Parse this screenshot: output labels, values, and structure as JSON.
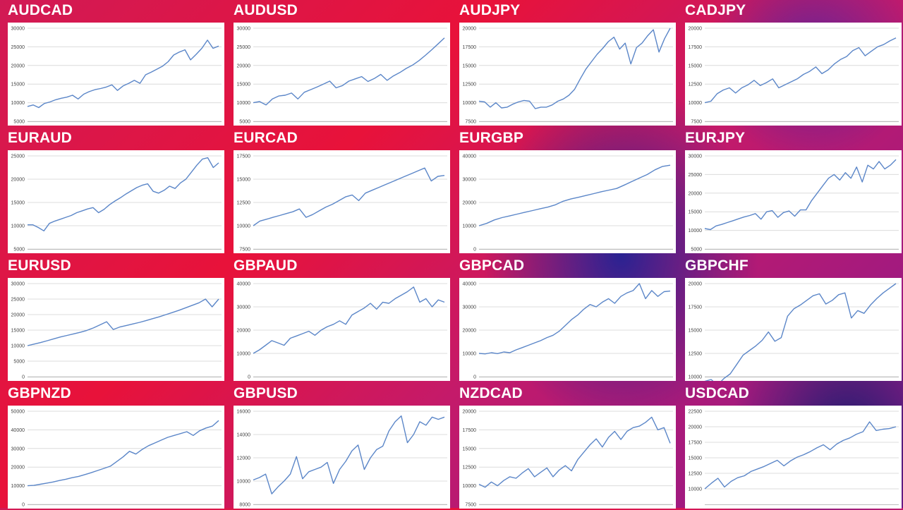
{
  "chart_data": [
    {
      "type": "line",
      "title": "AUDCAD",
      "ylim": [
        5000,
        30000
      ],
      "yticks": [
        5000,
        10000,
        15000,
        20000,
        25000,
        30000
      ],
      "x": [
        0,
        1,
        2,
        3,
        4,
        5,
        6,
        7,
        8,
        9,
        10,
        11,
        12,
        13,
        14,
        15,
        16,
        17,
        18,
        19,
        20,
        21,
        22,
        23,
        24,
        25,
        26,
        27,
        28,
        29,
        30,
        31,
        32,
        33,
        34
      ],
      "values": [
        9000,
        9400,
        8700,
        9800,
        10200,
        10800,
        11200,
        11500,
        12000,
        11000,
        12300,
        13000,
        13500,
        13800,
        14200,
        14800,
        13300,
        14500,
        15200,
        16000,
        15200,
        17500,
        18200,
        19000,
        19800,
        21000,
        22800,
        23600,
        24200,
        21500,
        23000,
        24600,
        26800,
        24600,
        25200
      ]
    },
    {
      "type": "line",
      "title": "AUDUSD",
      "ylim": [
        5000,
        30000
      ],
      "yticks": [
        5000,
        10000,
        15000,
        20000,
        25000,
        30000
      ],
      "x": [
        0,
        1,
        2,
        3,
        4,
        5,
        6,
        7,
        8,
        9,
        10,
        11,
        12,
        13,
        14,
        15,
        16,
        17,
        18,
        19,
        20,
        21,
        22,
        23,
        24,
        25,
        26,
        27,
        28,
        29,
        30
      ],
      "values": [
        10000,
        10300,
        9400,
        11000,
        11800,
        12000,
        12600,
        11000,
        12800,
        13500,
        14200,
        15000,
        15800,
        14000,
        14600,
        15800,
        16400,
        17000,
        15700,
        16500,
        17600,
        16000,
        17200,
        18100,
        19200,
        20100,
        21300,
        22700,
        24200,
        25800,
        27400
      ]
    },
    {
      "type": "line",
      "title": "AUDJPY",
      "ylim": [
        7500,
        20000
      ],
      "yticks": [
        7500,
        10000,
        12500,
        15000,
        17500,
        20000
      ],
      "x": [
        0,
        1,
        2,
        3,
        4,
        5,
        6,
        7,
        8,
        9,
        10,
        11,
        12,
        13,
        14,
        15,
        16,
        17,
        18,
        19,
        20,
        21,
        22,
        23,
        24,
        25,
        26,
        27,
        28,
        29,
        30,
        31,
        32,
        33,
        34
      ],
      "values": [
        10200,
        10100,
        9400,
        10000,
        9300,
        9400,
        9800,
        10100,
        10300,
        10200,
        9200,
        9400,
        9400,
        9700,
        10200,
        10500,
        11000,
        11800,
        13200,
        14500,
        15500,
        16500,
        17300,
        18200,
        18800,
        17200,
        18000,
        15200,
        17400,
        18000,
        19000,
        19800,
        16800,
        18600,
        20000
      ]
    },
    {
      "type": "line",
      "title": "CADJPY",
      "ylim": [
        7500,
        20000
      ],
      "yticks": [
        7500,
        10000,
        12500,
        15000,
        17500,
        20000
      ],
      "x": [
        0,
        1,
        2,
        3,
        4,
        5,
        6,
        7,
        8,
        9,
        10,
        11,
        12,
        13,
        14,
        15,
        16,
        17,
        18,
        19,
        20,
        21,
        22,
        23,
        24,
        25,
        26,
        27,
        28,
        29,
        30,
        31
      ],
      "values": [
        10000,
        10200,
        11200,
        11700,
        12000,
        11300,
        12000,
        12400,
        13000,
        12300,
        12700,
        13200,
        12000,
        12400,
        12800,
        13200,
        13800,
        14200,
        14800,
        13900,
        14400,
        15200,
        15800,
        16200,
        17000,
        17400,
        16300,
        16900,
        17500,
        17800,
        18300,
        18700
      ]
    },
    {
      "type": "line",
      "title": "EURAUD",
      "ylim": [
        5000,
        25000
      ],
      "yticks": [
        5000,
        10000,
        15000,
        20000,
        25000
      ],
      "x": [
        0,
        1,
        2,
        3,
        4,
        5,
        6,
        7,
        8,
        9,
        10,
        11,
        12,
        13,
        14,
        15,
        16,
        17,
        18,
        19,
        20,
        21,
        22,
        23,
        24,
        25,
        26,
        27,
        28,
        29,
        30,
        31,
        32,
        33,
        34,
        35
      ],
      "values": [
        10200,
        10200,
        9600,
        8900,
        10500,
        11000,
        11400,
        11800,
        12200,
        12800,
        13200,
        13600,
        13900,
        12800,
        13500,
        14500,
        15300,
        16000,
        16800,
        17500,
        18200,
        18700,
        19000,
        17400,
        17000,
        17600,
        18500,
        18000,
        19200,
        20000,
        21500,
        23000,
        24300,
        24600,
        22500,
        23500
      ]
    },
    {
      "type": "line",
      "title": "EURCAD",
      "ylim": [
        7500,
        17500
      ],
      "yticks": [
        7500,
        10000,
        12500,
        15000,
        17500
      ],
      "x": [
        0,
        1,
        2,
        3,
        4,
        5,
        6,
        7,
        8,
        9,
        10,
        11,
        12,
        13,
        14,
        15,
        16,
        17,
        18,
        19,
        20,
        21,
        22,
        23,
        24,
        25,
        26,
        27,
        28,
        29
      ],
      "values": [
        10000,
        10500,
        10700,
        10900,
        11100,
        11300,
        11500,
        11800,
        10900,
        11200,
        11600,
        12000,
        12300,
        12700,
        13100,
        13300,
        12700,
        13500,
        13800,
        14100,
        14400,
        14700,
        15000,
        15300,
        15600,
        15900,
        16200,
        14800,
        15300,
        15400
      ]
    },
    {
      "type": "line",
      "title": "EURGBP",
      "ylim": [
        0,
        40000
      ],
      "yticks": [
        0,
        10000,
        20000,
        30000,
        40000
      ],
      "x": [
        0,
        1,
        2,
        3,
        4,
        5,
        6,
        7,
        8,
        9,
        10,
        11,
        12,
        13,
        14,
        15,
        16,
        17,
        18,
        19,
        20,
        21,
        22,
        23,
        24,
        25
      ],
      "values": [
        10000,
        11000,
        12500,
        13500,
        14200,
        15000,
        15800,
        16500,
        17300,
        18000,
        19000,
        20500,
        21500,
        22200,
        23000,
        23800,
        24600,
        25300,
        26000,
        27500,
        29000,
        30500,
        32000,
        34000,
        35500,
        36000
      ]
    },
    {
      "type": "line",
      "title": "EURJPY",
      "ylim": [
        5000,
        30000
      ],
      "yticks": [
        5000,
        10000,
        15000,
        20000,
        25000,
        30000
      ],
      "x": [
        0,
        1,
        2,
        3,
        4,
        5,
        6,
        7,
        8,
        9,
        10,
        11,
        12,
        13,
        14,
        15,
        16,
        17,
        18,
        19,
        20,
        21,
        22,
        23,
        24,
        25,
        26,
        27,
        28,
        29,
        30,
        31,
        32,
        33,
        34
      ],
      "values": [
        10500,
        10200,
        11200,
        11600,
        12100,
        12600,
        13100,
        13600,
        14000,
        14500,
        13000,
        15000,
        15300,
        13500,
        14800,
        15200,
        13800,
        15500,
        15500,
        18000,
        20000,
        22000,
        24000,
        25000,
        23500,
        25500,
        24000,
        27000,
        23000,
        27500,
        26500,
        28500,
        26500,
        27500,
        29000
      ]
    },
    {
      "type": "line",
      "title": "EURUSD",
      "ylim": [
        0,
        30000
      ],
      "yticks": [
        0,
        5000,
        10000,
        15000,
        20000,
        25000,
        30000
      ],
      "x": [
        0,
        1,
        2,
        3,
        4,
        5,
        6,
        7,
        8,
        9,
        10,
        11,
        12,
        13,
        14,
        15,
        16,
        17,
        18,
        19,
        20,
        21,
        22,
        23,
        24,
        25,
        26,
        27,
        28,
        29
      ],
      "values": [
        10000,
        10500,
        11000,
        11600,
        12200,
        12800,
        13300,
        13800,
        14300,
        14900,
        15700,
        16700,
        17700,
        15200,
        16000,
        16500,
        17000,
        17500,
        18100,
        18700,
        19300,
        20000,
        20700,
        21400,
        22200,
        23000,
        23800,
        25000,
        22500,
        25000
      ]
    },
    {
      "type": "line",
      "title": "GBPAUD",
      "ylim": [
        0,
        40000
      ],
      "yticks": [
        0,
        10000,
        20000,
        30000,
        40000
      ],
      "x": [
        0,
        1,
        2,
        3,
        4,
        5,
        6,
        7,
        8,
        9,
        10,
        11,
        12,
        13,
        14,
        15,
        16,
        17,
        18,
        19,
        20,
        21,
        22,
        23,
        24,
        25,
        26,
        27,
        28,
        29,
        30,
        31
      ],
      "values": [
        10000,
        11500,
        13500,
        15500,
        14500,
        13500,
        16500,
        17500,
        18500,
        19500,
        17800,
        20000,
        21500,
        22500,
        24000,
        22500,
        26500,
        28000,
        29500,
        31500,
        29000,
        32000,
        31500,
        33500,
        35000,
        36500,
        38500,
        32000,
        33500,
        30000,
        33000,
        32000
      ]
    },
    {
      "type": "line",
      "title": "GBPCAD",
      "ylim": [
        0,
        40000
      ],
      "yticks": [
        0,
        10000,
        20000,
        30000,
        40000
      ],
      "x": [
        0,
        1,
        2,
        3,
        4,
        5,
        6,
        7,
        8,
        9,
        10,
        11,
        12,
        13,
        14,
        15,
        16,
        17,
        18,
        19,
        20,
        21,
        22,
        23,
        24,
        25,
        26,
        27,
        28,
        29,
        30,
        31
      ],
      "values": [
        10000,
        9800,
        10300,
        9900,
        10600,
        10300,
        11500,
        12500,
        13500,
        14500,
        15500,
        16800,
        17800,
        19500,
        22000,
        24500,
        26500,
        29000,
        31000,
        30000,
        32000,
        33500,
        31500,
        34500,
        36000,
        37000,
        40000,
        33500,
        37000,
        34500,
        36500,
        36800
      ]
    },
    {
      "type": "line",
      "title": "GBPCHF",
      "ylim": [
        10000,
        20000
      ],
      "yticks": [
        10000,
        12500,
        15000,
        17500,
        20000
      ],
      "x": [
        0,
        1,
        2,
        3,
        4,
        5,
        6,
        7,
        8,
        9,
        10,
        11,
        12,
        13,
        14,
        15,
        16,
        17,
        18,
        19,
        20,
        21,
        22,
        23,
        24,
        25,
        26,
        27,
        28,
        29,
        30
      ],
      "values": [
        9500,
        9700,
        9100,
        9800,
        10300,
        11300,
        12300,
        12800,
        13300,
        13900,
        14800,
        13800,
        14200,
        16500,
        17300,
        17700,
        18200,
        18700,
        18900,
        17800,
        18200,
        18800,
        19000,
        16300,
        17100,
        16800,
        17700,
        18400,
        19000,
        19500,
        20000
      ]
    },
    {
      "type": "line",
      "title": "GBPNZD",
      "ylim": [
        0,
        50000
      ],
      "yticks": [
        0,
        10000,
        20000,
        30000,
        40000,
        50000
      ],
      "x": [
        0,
        1,
        2,
        3,
        4,
        5,
        6,
        7,
        8,
        9,
        10,
        11,
        12,
        13,
        14,
        15,
        16,
        17,
        18,
        19,
        20,
        21,
        22,
        23,
        24,
        25,
        26,
        27,
        28,
        29,
        30
      ],
      "values": [
        10000,
        10200,
        10800,
        11400,
        12000,
        12800,
        13500,
        14300,
        15000,
        16000,
        17000,
        18200,
        19300,
        20500,
        23000,
        25500,
        28500,
        27000,
        29500,
        31500,
        33000,
        34500,
        36000,
        37000,
        38000,
        39000,
        37000,
        39500,
        41000,
        42000,
        45000
      ]
    },
    {
      "type": "line",
      "title": "GBPUSD",
      "ylim": [
        8000,
        16000
      ],
      "yticks": [
        8000,
        10000,
        12000,
        14000,
        16000
      ],
      "x": [
        0,
        1,
        2,
        3,
        4,
        5,
        6,
        7,
        8,
        9,
        10,
        11,
        12,
        13,
        14,
        15,
        16,
        17,
        18,
        19,
        20,
        21,
        22,
        23,
        24,
        25,
        26,
        27,
        28,
        29,
        30,
        31
      ],
      "values": [
        10100,
        10300,
        10600,
        8900,
        9500,
        10000,
        10600,
        12100,
        10200,
        10800,
        11000,
        11200,
        11600,
        9800,
        11000,
        11700,
        12600,
        13100,
        11000,
        12000,
        12700,
        13000,
        14300,
        15100,
        15600,
        13300,
        14000,
        15100,
        14800,
        15500,
        15300,
        15500
      ]
    },
    {
      "type": "line",
      "title": "NZDCAD",
      "ylim": [
        7500,
        20000
      ],
      "yticks": [
        7500,
        10000,
        12500,
        15000,
        17500,
        20000
      ],
      "x": [
        0,
        1,
        2,
        3,
        4,
        5,
        6,
        7,
        8,
        9,
        10,
        11,
        12,
        13,
        14,
        15,
        16,
        17,
        18,
        19,
        20,
        21,
        22,
        23,
        24,
        25,
        26,
        27,
        28,
        29,
        30,
        31
      ],
      "values": [
        10200,
        9800,
        10500,
        10000,
        10700,
        11200,
        11000,
        11700,
        12300,
        11200,
        11800,
        12400,
        11200,
        12100,
        12700,
        12000,
        13500,
        14500,
        15500,
        16300,
        15200,
        16500,
        17300,
        16200,
        17300,
        17800,
        18000,
        18500,
        19200,
        17500,
        17800,
        15700
      ]
    },
    {
      "type": "line",
      "title": "USDCAD",
      "ylim": [
        7500,
        22500
      ],
      "yticks": [
        10000,
        12500,
        15000,
        17500,
        20000,
        22500
      ],
      "x": [
        0,
        1,
        2,
        3,
        4,
        5,
        6,
        7,
        8,
        9,
        10,
        11,
        12,
        13,
        14,
        15,
        16,
        17,
        18,
        19,
        20,
        21,
        22,
        23,
        24,
        25,
        26,
        27,
        28,
        29
      ],
      "values": [
        10000,
        10900,
        11700,
        10300,
        11200,
        11800,
        12100,
        12800,
        13200,
        13600,
        14100,
        14600,
        13700,
        14500,
        15100,
        15500,
        16000,
        16600,
        17100,
        16300,
        17200,
        17800,
        18200,
        18800,
        19200,
        20800,
        19400,
        19600,
        19700,
        20000
      ]
    }
  ]
}
